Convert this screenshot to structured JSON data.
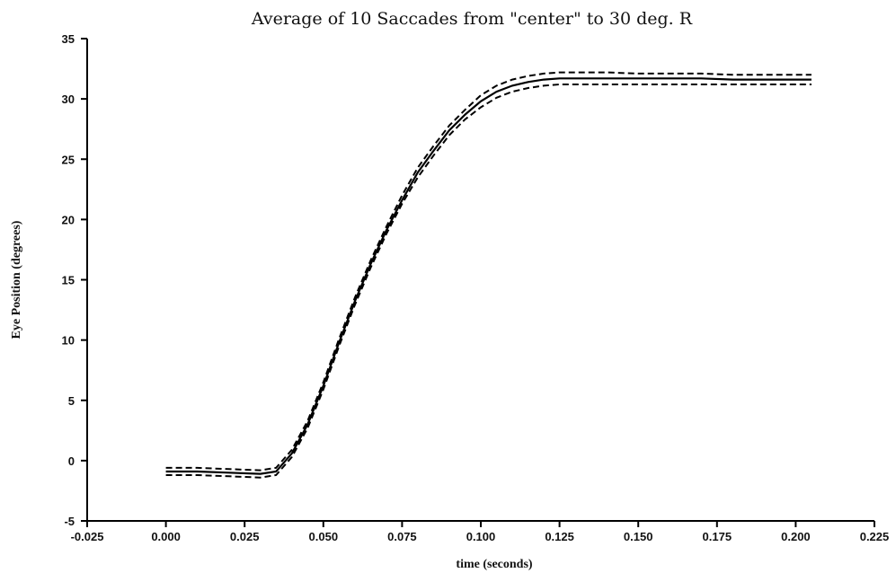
{
  "chart_data": {
    "type": "line",
    "title": "Average of 10 Saccades from \"center\" to 30 deg. R",
    "xlabel": "time (seconds)",
    "ylabel": "Eye Position (degrees)",
    "xlim": [
      -0.025,
      0.225
    ],
    "ylim": [
      -5,
      35
    ],
    "x_ticks": [
      -0.025,
      0.0,
      0.025,
      0.05,
      0.075,
      0.1,
      0.125,
      0.15,
      0.175,
      0.2,
      0.225
    ],
    "x_tick_labels": [
      "-0.025",
      "0.000",
      "0.025",
      "0.050",
      "0.075",
      "0.100",
      "0.125",
      "0.150",
      "0.175",
      "0.200",
      "0.225"
    ],
    "y_ticks": [
      -5,
      0,
      5,
      10,
      15,
      20,
      25,
      30,
      35
    ],
    "y_tick_labels": [
      "-5",
      "0",
      "5",
      "10",
      "15",
      "20",
      "25",
      "30",
      "35"
    ],
    "grid": false,
    "legend": "none",
    "x": [
      0.0,
      0.01,
      0.02,
      0.03,
      0.035,
      0.04,
      0.045,
      0.05,
      0.055,
      0.06,
      0.065,
      0.07,
      0.075,
      0.08,
      0.085,
      0.09,
      0.095,
      0.1,
      0.105,
      0.11,
      0.115,
      0.12,
      0.125,
      0.13,
      0.14,
      0.15,
      0.16,
      0.17,
      0.18,
      0.19,
      0.2,
      0.205
    ],
    "series": [
      {
        "style": "solid",
        "values": [
          -0.9,
          -0.9,
          -1.0,
          -1.1,
          -0.9,
          0.6,
          3.0,
          6.2,
          9.8,
          13.2,
          16.3,
          19.1,
          21.6,
          23.9,
          25.7,
          27.4,
          28.7,
          29.8,
          30.6,
          31.1,
          31.4,
          31.6,
          31.7,
          31.7,
          31.7,
          31.7,
          31.7,
          31.7,
          31.6,
          31.6,
          31.6,
          31.6
        ]
      },
      {
        "style": "dashed",
        "values": [
          -0.6,
          -0.6,
          -0.7,
          -0.8,
          -0.6,
          0.9,
          3.3,
          6.5,
          10.1,
          13.5,
          16.6,
          19.4,
          22.0,
          24.3,
          26.1,
          27.8,
          29.1,
          30.3,
          31.1,
          31.6,
          31.9,
          32.1,
          32.2,
          32.2,
          32.2,
          32.1,
          32.1,
          32.1,
          32.0,
          32.0,
          32.0,
          32.0
        ]
      },
      {
        "style": "dashed",
        "values": [
          -1.2,
          -1.2,
          -1.3,
          -1.4,
          -1.2,
          0.3,
          2.7,
          5.9,
          9.5,
          12.9,
          16.0,
          18.8,
          21.3,
          23.5,
          25.3,
          27.0,
          28.3,
          29.3,
          30.1,
          30.6,
          30.9,
          31.1,
          31.2,
          31.2,
          31.2,
          31.2,
          31.2,
          31.2,
          31.2,
          31.2,
          31.2,
          31.2
        ]
      }
    ]
  }
}
